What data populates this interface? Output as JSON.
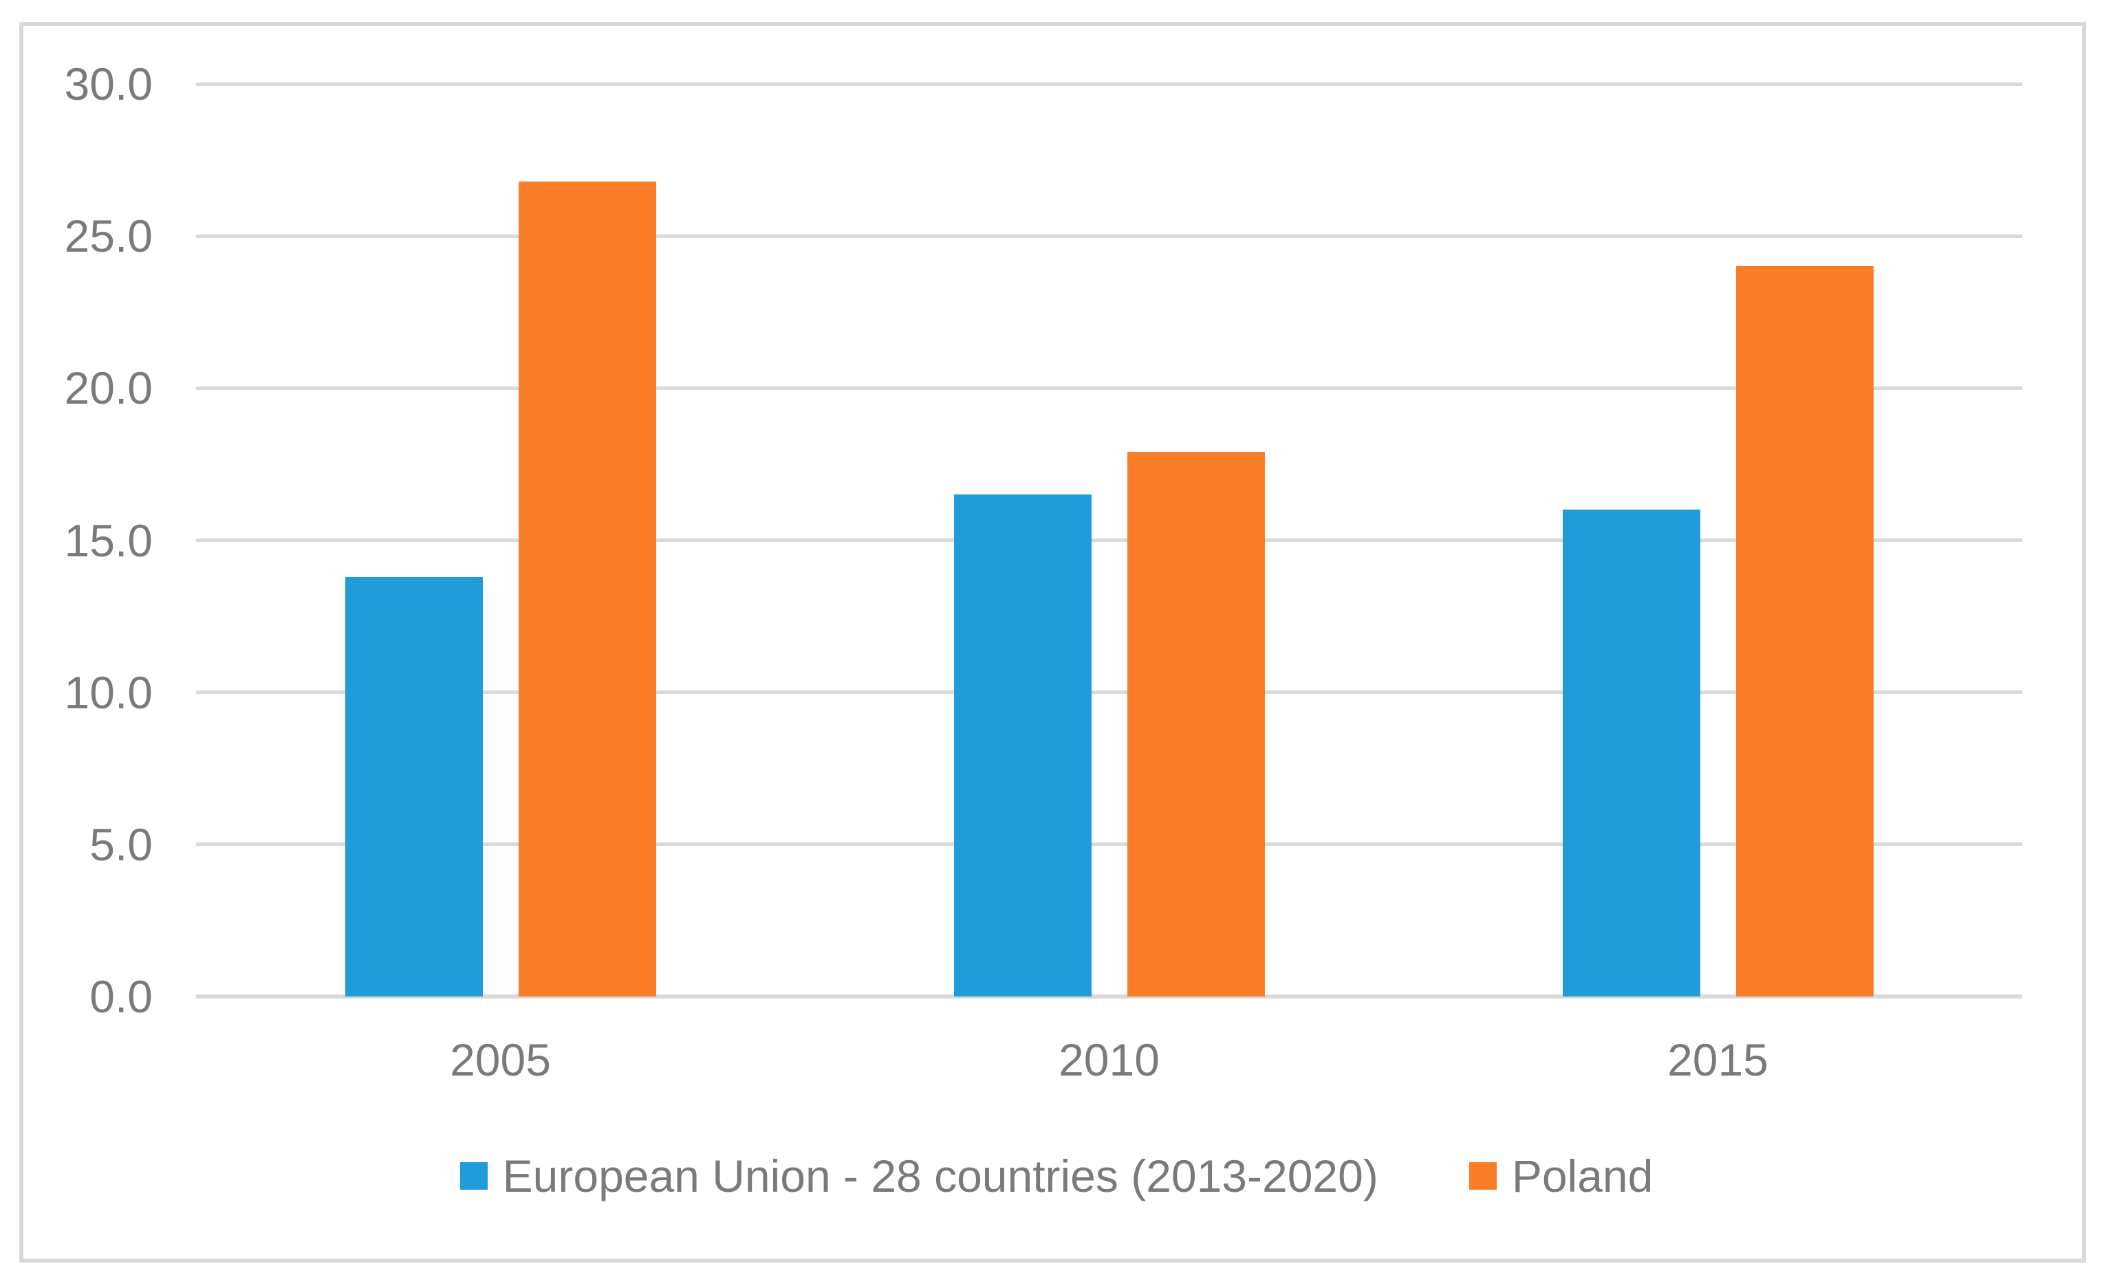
{
  "chart_data": {
    "type": "bar",
    "title": "",
    "xlabel": "",
    "ylabel": "",
    "categories": [
      "2005",
      "2010",
      "2015"
    ],
    "series": [
      {
        "name": "European Union - 28 countries (2013-2020)",
        "color": "#1F9CD9",
        "values": [
          13.8,
          16.5,
          16.0
        ]
      },
      {
        "name": "Poland",
        "color": "#FB7D28",
        "values": [
          26.8,
          17.9,
          24.0
        ]
      }
    ],
    "ylim": [
      0,
      30
    ],
    "yticks": [
      0,
      5,
      10,
      15,
      20,
      25,
      30
    ],
    "ytick_labels": [
      "0.0",
      "5.0",
      "10.0",
      "15.0",
      "20.0",
      "25.0",
      "30.0"
    ],
    "grid": true,
    "gridline_color": "#D9D9D9",
    "legend_position": "bottom",
    "axis_text_color": "#7A7A7A",
    "border_color": "#D9D9D9",
    "background_color": "#FFFFFF"
  }
}
